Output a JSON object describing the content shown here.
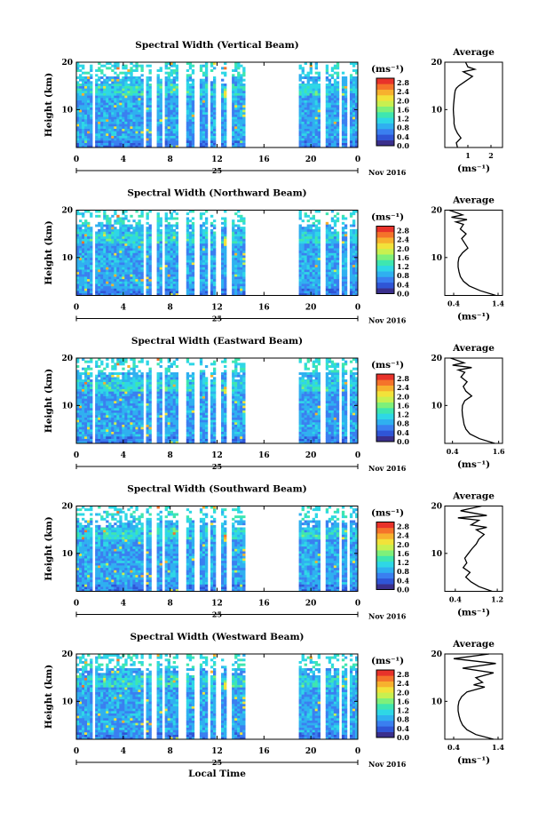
{
  "colors": {
    "scale": [
      "#3a2f8c",
      "#2f55d6",
      "#3a7ff0",
      "#2fb0f0",
      "#2ed7e6",
      "#3ee6b0",
      "#7ef07a",
      "#c8f050",
      "#f2e23a",
      "#f7b12e",
      "#f5732a",
      "#e8322a"
    ],
    "gap": "#ffffff",
    "axis": "#000000"
  },
  "chart_data": [
    {
      "type": "heatmap",
      "title": "Spectral Width (Vertical Beam)",
      "ylabel": "Height (km)",
      "xlabel": "",
      "x_ticks": [
        "0",
        "4",
        "8",
        "12",
        "16",
        "20",
        "0"
      ],
      "xlim": [
        0,
        24
      ],
      "y_ticks": [
        "20",
        "10"
      ],
      "ylim": [
        2,
        20
      ],
      "date_label": "25",
      "month_label": "Nov 2016",
      "colorbar": {
        "unit": "(ms⁻¹)",
        "ticks": [
          "2.8",
          "2.4",
          "2.0",
          "1.6",
          "1.2",
          "0.8",
          "0.4",
          "0.0"
        ],
        "range": [
          0,
          3.0
        ]
      },
      "gaps_hours": [
        [
          1.3,
          1.6
        ],
        [
          5.8,
          6.0
        ],
        [
          6.4,
          6.9
        ],
        [
          7.3,
          7.5
        ],
        [
          8.6,
          9.3
        ],
        [
          10.1,
          10.6
        ],
        [
          11.1,
          11.5
        ],
        [
          12.0,
          12.3
        ],
        [
          12.9,
          13.3
        ],
        [
          14.4,
          18.9
        ],
        [
          20.9,
          21.2
        ],
        [
          22.3,
          22.6
        ],
        [
          23.2,
          23.3
        ]
      ],
      "profile": {
        "title": "Average",
        "xlabel": "(ms⁻¹)",
        "x_ticks": [
          "1",
          "2"
        ],
        "xlim": [
          0,
          2.5
        ],
        "y_ticks": [
          "20",
          "10"
        ],
        "x": [
          0.55,
          0.5,
          0.7,
          0.55,
          0.45,
          0.4,
          0.4,
          0.38,
          0.37,
          0.38,
          0.4,
          0.42,
          0.45,
          0.5,
          0.6,
          0.9,
          1.2,
          0.8,
          1.3,
          1.0,
          0.9
        ],
        "y": [
          2,
          3,
          4,
          5,
          6,
          7,
          8,
          9,
          10,
          11,
          12,
          13,
          14,
          14.5,
          15,
          16,
          17,
          18,
          18.5,
          19,
          20
        ]
      }
    },
    {
      "type": "heatmap",
      "title": "Spectral Width (Northward Beam)",
      "ylabel": "Height (km)",
      "xlabel": "",
      "x_ticks": [
        "0",
        "4",
        "8",
        "12",
        "16",
        "20",
        "0"
      ],
      "xlim": [
        0,
        24
      ],
      "y_ticks": [
        "20",
        "10"
      ],
      "ylim": [
        2,
        20
      ],
      "date_label": "25",
      "month_label": "Nov 2016",
      "colorbar": {
        "unit": "(ms⁻¹)",
        "ticks": [
          "2.8",
          "2.4",
          "2.0",
          "1.6",
          "1.2",
          "0.8",
          "0.4",
          "0.0"
        ],
        "range": [
          0,
          3.0
        ]
      },
      "gaps_hours": [
        [
          1.3,
          1.6
        ],
        [
          5.8,
          6.0
        ],
        [
          6.4,
          6.9
        ],
        [
          7.3,
          7.5
        ],
        [
          8.6,
          9.3
        ],
        [
          10.1,
          10.6
        ],
        [
          11.1,
          11.5
        ],
        [
          12.0,
          12.3
        ],
        [
          12.9,
          13.3
        ],
        [
          14.4,
          18.9
        ],
        [
          20.9,
          21.2
        ],
        [
          22.3,
          22.6
        ],
        [
          23.2,
          23.3
        ]
      ],
      "profile": {
        "title": "Average",
        "xlabel": "(ms⁻¹)",
        "x_ticks": [
          "0.4",
          "1.4"
        ],
        "xlim": [
          0.2,
          1.5
        ],
        "y_ticks": [
          "20",
          "10"
        ],
        "x": [
          1.35,
          1.0,
          0.75,
          0.62,
          0.55,
          0.52,
          0.5,
          0.5,
          0.52,
          0.6,
          0.72,
          0.65,
          0.58,
          0.68,
          0.55,
          0.62,
          0.45,
          0.7,
          0.35,
          0.6,
          0.3
        ],
        "y": [
          2,
          3,
          4,
          5,
          6,
          7,
          8,
          9,
          10,
          11,
          12,
          13,
          14,
          15,
          16,
          17,
          17.5,
          18,
          18.5,
          19,
          20
        ]
      }
    },
    {
      "type": "heatmap",
      "title": "Spectral Width (Eastward Beam)",
      "ylabel": "Height (km)",
      "xlabel": "",
      "x_ticks": [
        "0",
        "4",
        "8",
        "12",
        "16",
        "20",
        "0"
      ],
      "xlim": [
        0,
        24
      ],
      "y_ticks": [
        "20",
        "10"
      ],
      "ylim": [
        2,
        20
      ],
      "date_label": "25",
      "month_label": "Nov 2016",
      "colorbar": {
        "unit": "(ms⁻¹)",
        "ticks": [
          "2.8",
          "2.4",
          "2.0",
          "1.6",
          "1.2",
          "0.8",
          "0.4",
          "0.0"
        ],
        "range": [
          0,
          3.0
        ]
      },
      "gaps_hours": [
        [
          1.3,
          1.6
        ],
        [
          5.8,
          6.0
        ],
        [
          6.4,
          6.9
        ],
        [
          7.3,
          7.5
        ],
        [
          8.6,
          9.3
        ],
        [
          10.1,
          10.6
        ],
        [
          11.1,
          11.5
        ],
        [
          12.0,
          12.3
        ],
        [
          12.9,
          13.3
        ],
        [
          14.4,
          18.9
        ],
        [
          20.9,
          21.2
        ],
        [
          22.3,
          22.6
        ],
        [
          23.2,
          23.3
        ]
      ],
      "profile": {
        "title": "Average",
        "xlabel": "(ms⁻¹)",
        "x_ticks": [
          "0.4",
          "1.6"
        ],
        "xlim": [
          0.2,
          1.7
        ],
        "y_ticks": [
          "20",
          "10"
        ],
        "x": [
          1.5,
          1.1,
          0.85,
          0.75,
          0.7,
          0.68,
          0.66,
          0.65,
          0.66,
          0.72,
          0.9,
          0.75,
          0.68,
          0.78,
          0.62,
          0.72,
          0.55,
          0.9,
          0.4,
          0.7,
          0.35
        ],
        "y": [
          2,
          3,
          4,
          5,
          6,
          7,
          8,
          9,
          10,
          11,
          12,
          13,
          14,
          15,
          16,
          17,
          17.5,
          18,
          18.5,
          19,
          20
        ]
      }
    },
    {
      "type": "heatmap",
      "title": "Spectral Width (Southward Beam)",
      "ylabel": "Height (km)",
      "xlabel": "",
      "x_ticks": [
        "0",
        "4",
        "8",
        "12",
        "16",
        "20",
        "0"
      ],
      "xlim": [
        0,
        24
      ],
      "y_ticks": [
        "20",
        "10"
      ],
      "ylim": [
        2,
        20
      ],
      "date_label": "25",
      "month_label": "Nov 2016",
      "colorbar": {
        "unit": "(ms⁻¹)",
        "ticks": [
          "2.8",
          "2.4",
          "2.0",
          "1.6",
          "1.2",
          "0.8",
          "0.4",
          "0.0"
        ],
        "range": [
          0,
          3.0
        ]
      },
      "gaps_hours": [
        [
          1.3,
          1.6
        ],
        [
          5.8,
          6.0
        ],
        [
          6.4,
          6.9
        ],
        [
          7.3,
          7.5
        ],
        [
          8.6,
          9.3
        ],
        [
          10.1,
          10.6
        ],
        [
          11.1,
          11.5
        ],
        [
          12.0,
          12.3
        ],
        [
          12.9,
          13.3
        ],
        [
          14.4,
          18.9
        ],
        [
          20.9,
          21.2
        ],
        [
          22.3,
          22.6
        ],
        [
          23.2,
          23.3
        ]
      ],
      "profile": {
        "title": "Average",
        "xlabel": "(ms⁻¹)",
        "x_ticks": [
          "0.4",
          "1.2"
        ],
        "xlim": [
          0.2,
          1.3
        ],
        "y_ticks": [
          "20",
          "10"
        ],
        "x": [
          1.1,
          0.85,
          0.7,
          0.6,
          0.68,
          0.55,
          0.62,
          0.58,
          0.65,
          0.72,
          0.8,
          0.85,
          0.95,
          0.8,
          1.0,
          0.7,
          0.85,
          0.45,
          1.0,
          0.5,
          0.9
        ],
        "y": [
          2,
          3,
          4,
          5,
          6,
          7,
          8,
          9,
          10,
          11,
          12,
          13,
          14,
          15,
          15.5,
          16,
          17,
          17.5,
          18,
          19,
          20
        ]
      }
    },
    {
      "type": "heatmap",
      "title": "Spectral Width (Westward Beam)",
      "ylabel": "Height (km)",
      "xlabel": "Local Time",
      "x_ticks": [
        "0",
        "4",
        "8",
        "12",
        "16",
        "20",
        "0"
      ],
      "xlim": [
        0,
        24
      ],
      "y_ticks": [
        "20",
        "10"
      ],
      "ylim": [
        2,
        20
      ],
      "date_label": "25",
      "month_label": "Nov 2016",
      "colorbar": {
        "unit": "(ms⁻¹)",
        "ticks": [
          "2.8",
          "2.4",
          "2.0",
          "1.6",
          "1.2",
          "0.8",
          "0.4",
          "0.0"
        ],
        "range": [
          0,
          3.0
        ]
      },
      "gaps_hours": [
        [
          1.3,
          1.6
        ],
        [
          5.8,
          6.0
        ],
        [
          6.4,
          6.9
        ],
        [
          7.3,
          7.5
        ],
        [
          8.6,
          9.3
        ],
        [
          10.1,
          10.6
        ],
        [
          11.1,
          11.5
        ],
        [
          12.0,
          12.3
        ],
        [
          12.9,
          13.3
        ],
        [
          14.4,
          18.9
        ],
        [
          20.9,
          21.2
        ],
        [
          22.3,
          22.6
        ],
        [
          23.2,
          23.3
        ]
      ],
      "profile": {
        "title": "Average",
        "xlabel": "(ms⁻¹)",
        "x_ticks": [
          "0.4",
          "1.4"
        ],
        "xlim": [
          0.2,
          1.5
        ],
        "y_ticks": [
          "20",
          "10"
        ],
        "x": [
          1.3,
          0.9,
          0.7,
          0.6,
          0.55,
          0.52,
          0.5,
          0.5,
          0.52,
          0.58,
          0.7,
          0.9,
          1.1,
          0.85,
          1.05,
          0.9,
          1.3,
          0.6,
          1.35,
          0.4,
          1.2
        ],
        "y": [
          2,
          3,
          4,
          5,
          6,
          7,
          8,
          9,
          10,
          11,
          12,
          12.5,
          13,
          13.5,
          14,
          15,
          16,
          17,
          18,
          19,
          20
        ]
      }
    }
  ]
}
